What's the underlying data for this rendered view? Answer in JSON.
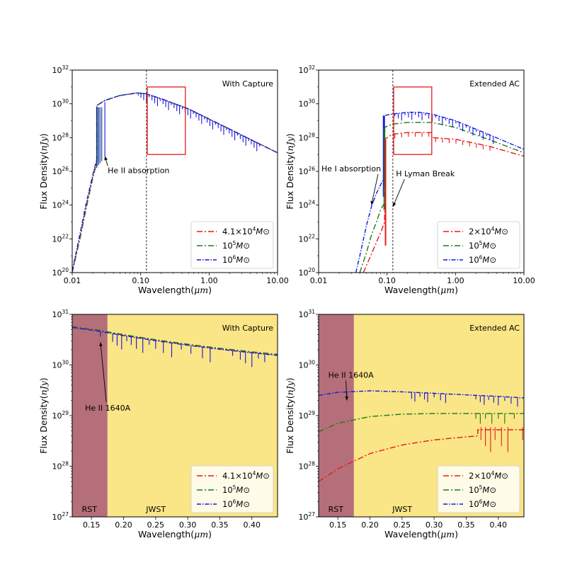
{
  "chart_data": [
    {
      "type": "line",
      "panel": "top-left",
      "title": "With Capture",
      "xlabel": "Wavelength(μm)",
      "ylabel": "Flux Density(nJy)",
      "xscale": "log",
      "yscale": "log",
      "xlim": [
        0.01,
        10.0
      ],
      "ylim": [
        1e+20,
        1e+32
      ],
      "x_ticks": [
        {
          "v": 0.01,
          "label": "0.01"
        },
        {
          "v": 0.1,
          "label": "0.10"
        },
        {
          "v": 1.0,
          "label": "1.00"
        },
        {
          "v": 10.0,
          "label": "10.00"
        }
      ],
      "y_ticks": [
        {
          "exp": 20,
          "label": "10",
          "sup": "20"
        },
        {
          "exp": 22,
          "label": "10",
          "sup": "22"
        },
        {
          "exp": 24,
          "label": "10",
          "sup": "24"
        },
        {
          "exp": 26,
          "label": "10",
          "sup": "26"
        },
        {
          "exp": 28,
          "label": "10",
          "sup": "28"
        },
        {
          "exp": 30,
          "label": "10",
          "sup": "30"
        },
        {
          "exp": 32,
          "label": "10",
          "sup": "32"
        }
      ],
      "vline_x": 0.1216,
      "box": {
        "x": [
          0.125,
          0.45
        ],
        "y_exp": [
          27,
          31
        ]
      },
      "annotations": [
        {
          "text": "He II absorption",
          "text_at": [
            0.033,
            25.9
          ],
          "arrow_to": [
            0.03,
            26.9
          ]
        }
      ],
      "legend": "lower-right",
      "series": [
        {
          "name": "4.1×10⁴M⊙",
          "label": "4.1×10",
          "sup": "4",
          "unit": "M⊙",
          "color": "#e8191b",
          "dash": "8,3,2,3",
          "x": [
            0.01,
            0.013,
            0.016,
            0.02,
            0.0228,
            0.0228,
            0.03,
            0.05,
            0.09,
            0.12,
            0.2,
            0.5,
            1.0,
            2.0,
            5.0,
            10.0
          ],
          "y_exp": [
            20.0,
            22.0,
            23.8,
            25.6,
            26.5,
            29.9,
            30.2,
            30.5,
            30.65,
            30.6,
            30.3,
            29.7,
            29.1,
            28.5,
            27.7,
            27.1
          ]
        },
        {
          "name": "10⁵M⊙",
          "label": "10",
          "sup": "5",
          "unit": "M⊙",
          "color": "#1a7a1a",
          "dash": "8,3,2,3",
          "x": [
            0.01,
            0.013,
            0.016,
            0.02,
            0.0228,
            0.0228,
            0.03,
            0.05,
            0.09,
            0.12,
            0.2,
            0.5,
            1.0,
            2.0,
            5.0,
            10.0
          ],
          "y_exp": [
            20.05,
            22.1,
            23.9,
            25.7,
            26.6,
            29.9,
            30.2,
            30.5,
            30.65,
            30.6,
            30.3,
            29.7,
            29.1,
            28.5,
            27.7,
            27.1
          ]
        },
        {
          "name": "10⁶M⊙",
          "label": "10",
          "sup": "6",
          "unit": "M⊙",
          "color": "#1515e0",
          "dash": "6,2,1.5,2",
          "x": [
            0.01,
            0.013,
            0.016,
            0.02,
            0.0228,
            0.0228,
            0.03,
            0.05,
            0.09,
            0.12,
            0.2,
            0.5,
            1.0,
            2.0,
            5.0,
            10.0
          ],
          "y_exp": [
            20.1,
            22.3,
            24.1,
            25.8,
            26.7,
            29.9,
            30.2,
            30.5,
            30.65,
            30.6,
            30.3,
            29.7,
            29.1,
            28.5,
            27.7,
            27.1
          ]
        }
      ]
    },
    {
      "type": "line",
      "panel": "top-right",
      "title": "Extended AC",
      "xlabel": "Wavelength(μm)",
      "ylabel": "Flux Density(nJy)",
      "xscale": "log",
      "yscale": "log",
      "xlim": [
        0.01,
        10.0
      ],
      "ylim": [
        1e+20,
        1e+32
      ],
      "x_ticks": [
        {
          "v": 0.01,
          "label": "0.01"
        },
        {
          "v": 0.1,
          "label": "0.10"
        },
        {
          "v": 1.0,
          "label": "1.00"
        },
        {
          "v": 10.0,
          "label": "10.00"
        }
      ],
      "y_ticks": [
        {
          "exp": 20,
          "label": "10",
          "sup": "20"
        },
        {
          "exp": 22,
          "label": "10",
          "sup": "22"
        },
        {
          "exp": 24,
          "label": "10",
          "sup": "24"
        },
        {
          "exp": 26,
          "label": "10",
          "sup": "26"
        },
        {
          "exp": 28,
          "label": "10",
          "sup": "28"
        },
        {
          "exp": 30,
          "label": "10",
          "sup": "30"
        },
        {
          "exp": 32,
          "label": "10",
          "sup": "32"
        }
      ],
      "vline_x": 0.1216,
      "box": {
        "x": [
          0.125,
          0.45
        ],
        "y_exp": [
          27,
          31
        ]
      },
      "annotations": [
        {
          "text": "He I absorption",
          "text_at": [
            0.011,
            26.0
          ],
          "arrow_to": [
            0.059,
            24.0
          ]
        },
        {
          "text": "H Lyman Break",
          "text_at": [
            0.135,
            25.7
          ],
          "arrow_to": [
            0.122,
            23.9
          ]
        }
      ],
      "legend": "lower-right",
      "series": [
        {
          "name": "2×10⁴M⊙",
          "label": "2×10",
          "sup": "4",
          "unit": "M⊙",
          "color": "#e8191b",
          "dash": "8,3,2,3",
          "x": [
            0.045,
            0.055,
            0.07,
            0.085,
            0.092,
            0.092,
            0.12,
            0.2,
            0.3,
            0.45,
            0.45,
            1.0,
            3.0,
            10.0
          ],
          "y_exp": [
            20.0,
            20.8,
            21.8,
            22.6,
            23.0,
            27.9,
            28.2,
            28.3,
            28.3,
            28.3,
            28.0,
            27.9,
            27.5,
            26.9
          ]
        },
        {
          "name": "10⁵M⊙",
          "label": "10",
          "sup": "5",
          "unit": "M⊙",
          "color": "#1a7a1a",
          "dash": "8,3,2,3",
          "x": [
            0.04,
            0.05,
            0.06,
            0.07,
            0.08,
            0.091,
            0.091,
            0.12,
            0.2,
            0.3,
            0.45,
            1.0,
            3.0,
            10.0
          ],
          "y_exp": [
            20.0,
            21.2,
            22.3,
            23.0,
            23.7,
            24.1,
            28.6,
            28.8,
            28.9,
            28.9,
            28.9,
            28.6,
            27.9,
            27.1
          ]
        },
        {
          "name": "10⁶M⊙",
          "label": "10",
          "sup": "6",
          "unit": "M⊙",
          "color": "#1515e0",
          "dash": "6,2,1.5,2",
          "x": [
            0.035,
            0.04,
            0.05,
            0.06,
            0.07,
            0.085,
            0.09,
            0.09,
            0.12,
            0.2,
            0.3,
            0.45,
            1.0,
            3.0,
            10.0
          ],
          "y_exp": [
            20.0,
            21.0,
            22.8,
            24.0,
            24.7,
            25.4,
            25.6,
            29.3,
            29.4,
            29.5,
            29.5,
            29.4,
            29.0,
            28.2,
            27.3
          ]
        }
      ]
    },
    {
      "type": "line",
      "panel": "bottom-left",
      "title": "With Capture",
      "xlabel": "Wavelength(μm)",
      "ylabel": "Flux Density(nJy)",
      "xscale": "linear",
      "yscale": "log",
      "xlim": [
        0.12,
        0.44
      ],
      "ylim": [
        1e+27,
        1e+31
      ],
      "x_ticks": [
        {
          "v": 0.15,
          "label": "0.15"
        },
        {
          "v": 0.2,
          "label": "0.20"
        },
        {
          "v": 0.25,
          "label": "0.25"
        },
        {
          "v": 0.3,
          "label": "0.30"
        },
        {
          "v": 0.35,
          "label": "0.35"
        },
        {
          "v": 0.4,
          "label": "0.40"
        }
      ],
      "y_ticks": [
        {
          "exp": 27,
          "label": "10",
          "sup": "27"
        },
        {
          "exp": 28,
          "label": "10",
          "sup": "28"
        },
        {
          "exp": 29,
          "label": "10",
          "sup": "29"
        },
        {
          "exp": 30,
          "label": "10",
          "sup": "30"
        },
        {
          "exp": 31,
          "label": "10",
          "sup": "31"
        }
      ],
      "bands": [
        {
          "label": "RST",
          "x": [
            0.12,
            0.175
          ],
          "color": "#b56f7a"
        },
        {
          "label": "JWST",
          "x": [
            0.175,
            0.44
          ],
          "color": "#fae587"
        }
      ],
      "band_labels": [
        {
          "text": "RST",
          "at": [
            0.135,
            27.1
          ]
        },
        {
          "text": "JWST",
          "at": [
            0.235,
            27.1
          ]
        }
      ],
      "annotations": [
        {
          "text": "He II 1640A",
          "text_at": [
            0.14,
            29.1
          ],
          "arrow_to": [
            0.164,
            30.45
          ]
        }
      ],
      "legend": "lower-right",
      "series": [
        {
          "name": "4.1×10⁴M⊙",
          "label": "4.1×10",
          "sup": "4",
          "unit": "M⊙",
          "color": "#e8191b",
          "dash": "8,3,2,3",
          "x": [
            0.12,
            0.16,
            0.2,
            0.25,
            0.3,
            0.35,
            0.4,
            0.44
          ],
          "y_exp": [
            30.75,
            30.68,
            30.59,
            30.49,
            30.4,
            30.32,
            30.25,
            30.2
          ]
        },
        {
          "name": "10⁵M⊙",
          "label": "10",
          "sup": "5",
          "unit": "M⊙",
          "color": "#1a7a1a",
          "dash": "8,3,2,3",
          "x": [
            0.12,
            0.16,
            0.2,
            0.25,
            0.3,
            0.35,
            0.4,
            0.44
          ],
          "y_exp": [
            30.76,
            30.69,
            30.6,
            30.5,
            30.41,
            30.33,
            30.26,
            30.21
          ]
        },
        {
          "name": "10⁶M⊙",
          "label": "10",
          "sup": "6",
          "unit": "M⊙",
          "color": "#1515e0",
          "dash": "6,2,1.5,2",
          "x": [
            0.12,
            0.16,
            0.2,
            0.25,
            0.3,
            0.35,
            0.4,
            0.44
          ],
          "y_exp": [
            30.74,
            30.67,
            30.58,
            30.48,
            30.39,
            30.31,
            30.24,
            30.19
          ]
        }
      ]
    },
    {
      "type": "line",
      "panel": "bottom-right",
      "title": "Extended AC",
      "xlabel": "Wavelength(μm)",
      "ylabel": "Flux Density(nJy)",
      "xscale": "linear",
      "yscale": "log",
      "xlim": [
        0.12,
        0.44
      ],
      "ylim": [
        1e+27,
        1e+31
      ],
      "x_ticks": [
        {
          "v": 0.15,
          "label": "0.15"
        },
        {
          "v": 0.2,
          "label": "0.20"
        },
        {
          "v": 0.25,
          "label": "0.25"
        },
        {
          "v": 0.3,
          "label": "0.30"
        },
        {
          "v": 0.35,
          "label": "0.35"
        },
        {
          "v": 0.4,
          "label": "0.40"
        }
      ],
      "y_ticks": [
        {
          "exp": 27,
          "label": "10",
          "sup": "27"
        },
        {
          "exp": 28,
          "label": "10",
          "sup": "28"
        },
        {
          "exp": 29,
          "label": "10",
          "sup": "29"
        },
        {
          "exp": 30,
          "label": "10",
          "sup": "30"
        },
        {
          "exp": 31,
          "label": "10",
          "sup": "31"
        }
      ],
      "bands": [
        {
          "label": "RST",
          "x": [
            0.12,
            0.175
          ],
          "color": "#b56f7a"
        },
        {
          "label": "JWST",
          "x": [
            0.175,
            0.44
          ],
          "color": "#fae587"
        }
      ],
      "band_labels": [
        {
          "text": "RST",
          "at": [
            0.135,
            27.1
          ]
        },
        {
          "text": "JWST",
          "at": [
            0.235,
            27.1
          ]
        }
      ],
      "annotations": [
        {
          "text": "He II 1640A",
          "text_at": [
            0.135,
            29.75
          ],
          "arrow_to": [
            0.164,
            29.3
          ]
        }
      ],
      "legend": "lower-right",
      "series": [
        {
          "name": "2×10⁴M⊙",
          "label": "2×10",
          "sup": "4",
          "unit": "M⊙",
          "color": "#e8191b",
          "dash": "8,3,2,3",
          "x": [
            0.12,
            0.15,
            0.2,
            0.25,
            0.3,
            0.35,
            0.368,
            0.368,
            0.4,
            0.44
          ],
          "y_exp": [
            27.7,
            27.95,
            28.25,
            28.42,
            28.52,
            28.58,
            28.6,
            28.72,
            28.72,
            28.72
          ]
        },
        {
          "name": "10⁵M⊙",
          "label": "10",
          "sup": "5",
          "unit": "M⊙",
          "color": "#1a7a1a",
          "dash": "8,3,2,3",
          "x": [
            0.12,
            0.15,
            0.2,
            0.25,
            0.3,
            0.35,
            0.4,
            0.44
          ],
          "y_exp": [
            28.68,
            28.85,
            28.98,
            29.03,
            29.04,
            29.04,
            29.04,
            29.04
          ]
        },
        {
          "name": "10⁶M⊙",
          "label": "10",
          "sup": "6",
          "unit": "M⊙",
          "color": "#1515e0",
          "dash": "6,2,1.5,2",
          "x": [
            0.12,
            0.15,
            0.2,
            0.25,
            0.3,
            0.35,
            0.4,
            0.44
          ],
          "y_exp": [
            29.4,
            29.46,
            29.49,
            29.47,
            29.44,
            29.41,
            29.38,
            29.35
          ]
        }
      ]
    }
  ]
}
